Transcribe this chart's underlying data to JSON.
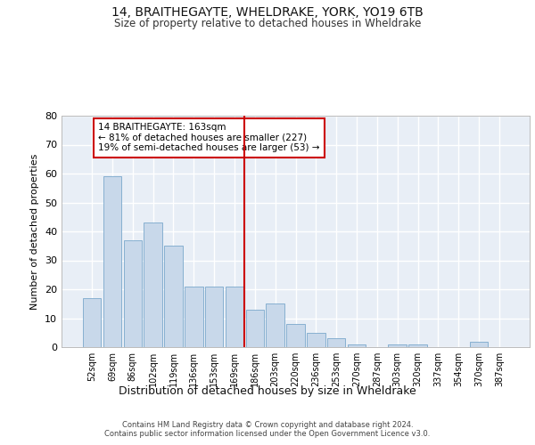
{
  "title1": "14, BRAITHEGAYTE, WHELDRAKE, YORK, YO19 6TB",
  "title2": "Size of property relative to detached houses in Wheldrake",
  "xlabel": "Distribution of detached houses by size in Wheldrake",
  "ylabel": "Number of detached properties",
  "bar_color": "#c8d8ea",
  "bar_edge_color": "#7aa8cc",
  "background_color": "#e8eef6",
  "grid_color": "#ffffff",
  "categories": [
    "52sqm",
    "69sqm",
    "86sqm",
    "102sqm",
    "119sqm",
    "136sqm",
    "153sqm",
    "169sqm",
    "186sqm",
    "203sqm",
    "220sqm",
    "236sqm",
    "253sqm",
    "270sqm",
    "287sqm",
    "303sqm",
    "320sqm",
    "337sqm",
    "354sqm",
    "370sqm",
    "387sqm"
  ],
  "values": [
    17,
    59,
    37,
    43,
    35,
    21,
    21,
    21,
    13,
    15,
    8,
    5,
    3,
    1,
    0,
    1,
    1,
    0,
    0,
    2,
    0
  ],
  "vline_x": 7.5,
  "vline_color": "#cc0000",
  "annotation_text": "14 BRAITHEGAYTE: 163sqm\n← 81% of detached houses are smaller (227)\n19% of semi-detached houses are larger (53) →",
  "annotation_box_color": "#ffffff",
  "annotation_box_edge_color": "#cc0000",
  "ylim": [
    0,
    80
  ],
  "yticks": [
    0,
    10,
    20,
    30,
    40,
    50,
    60,
    70,
    80
  ],
  "footer1": "Contains HM Land Registry data © Crown copyright and database right 2024.",
  "footer2": "Contains public sector information licensed under the Open Government Licence v3.0."
}
